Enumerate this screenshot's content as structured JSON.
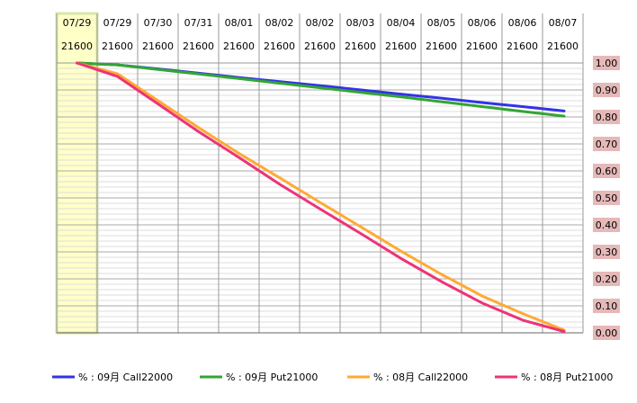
{
  "chart_data": {
    "type": "line",
    "header": {
      "dates": [
        "07/29",
        "07/29",
        "07/30",
        "07/31",
        "08/01",
        "08/02",
        "08/02",
        "08/03",
        "08/04",
        "08/05",
        "08/06",
        "08/06",
        "08/07"
      ],
      "prices": [
        "21600",
        "21600",
        "21600",
        "21600",
        "21600",
        "21600",
        "21600",
        "21600",
        "21600",
        "21600",
        "21600",
        "21600",
        "21600"
      ]
    },
    "y_ticks": [
      "1.00",
      "0.90",
      "0.80",
      "0.70",
      "0.60",
      "0.50",
      "0.40",
      "0.30",
      "0.20",
      "0.10",
      "0.00"
    ],
    "ylim": [
      0,
      1
    ],
    "grid": true,
    "legend_position": "bottom",
    "highlight_column": 0,
    "colors": {
      "highlight_fill": "#ffffc8",
      "highlight_border": "#d8e6a8",
      "tick_bg": "#e6b8b8",
      "grid": "#c8c8c8"
    },
    "series": [
      {
        "name": "% : 09月 Call22000",
        "color": "#3333e6",
        "values": [
          1.0,
          0.993,
          0.978,
          0.962,
          0.946,
          0.931,
          0.916,
          0.9,
          0.884,
          0.869,
          0.853,
          0.838,
          0.822
        ]
      },
      {
        "name": "% : 09月 Put21000",
        "color": "#33a533",
        "values": [
          1.0,
          0.993,
          0.976,
          0.959,
          0.942,
          0.925,
          0.908,
          0.891,
          0.874,
          0.856,
          0.838,
          0.82,
          0.803
        ]
      },
      {
        "name": "% : 08月 Call22000",
        "color": "#ffaa33",
        "values": [
          1.0,
          0.96,
          0.86,
          0.76,
          0.664,
          0.574,
          0.482,
          0.392,
          0.301,
          0.215,
          0.135,
          0.07,
          0.01
        ]
      },
      {
        "name": "% : 08月 Put21000",
        "color": "#ee3377",
        "values": [
          1.0,
          0.95,
          0.848,
          0.745,
          0.649,
          0.55,
          0.458,
          0.367,
          0.274,
          0.188,
          0.109,
          0.046,
          0.005
        ]
      }
    ]
  }
}
